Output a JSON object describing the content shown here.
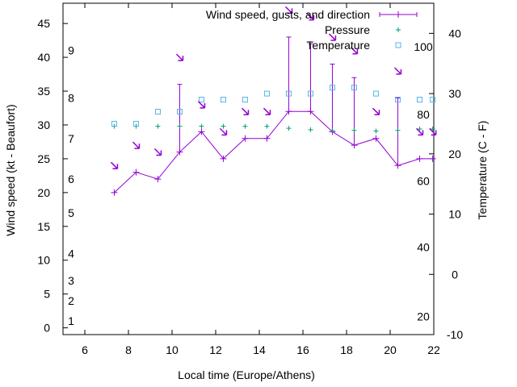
{
  "chart_data": {
    "type": "line",
    "xlabel": "Local time (Europe/Athens)",
    "ylabel": "Wind speed (kt - Beaufort)",
    "y2label": "Temperature (C - F)",
    "xlim": [
      5,
      22
    ],
    "ylim": [
      -1,
      48
    ],
    "y2lim": [
      -10,
      45
    ],
    "xticks": [
      6,
      8,
      10,
      12,
      14,
      16,
      18,
      20,
      22
    ],
    "yticks": [
      0,
      5,
      10,
      15,
      20,
      25,
      30,
      35,
      40,
      45
    ],
    "y2ticks": [
      -10,
      0,
      10,
      20,
      30,
      40
    ],
    "beaufort_labels": [
      {
        "text": "1",
        "y": 1
      },
      {
        "text": "2",
        "y": 4
      },
      {
        "text": "3",
        "y": 7
      },
      {
        "text": "4",
        "y": 11
      },
      {
        "text": "5",
        "y": 17
      },
      {
        "text": "6",
        "y": 22
      },
      {
        "text": "7",
        "y": 28
      },
      {
        "text": "8",
        "y": 34
      },
      {
        "text": "9",
        "y": 41
      }
    ],
    "fahrenheit_labels": [
      {
        "text": "20",
        "y2": -7
      },
      {
        "text": "40",
        "y2": 4.5
      },
      {
        "text": "60",
        "y2": 15.5
      },
      {
        "text": "80",
        "y2": 26.5
      },
      {
        "text": "100",
        "y2": 37.8
      }
    ],
    "legend_position": "top-right",
    "grid": false,
    "series": [
      {
        "name": "Wind speed, gusts, and direction",
        "type": "errorbar-line",
        "color": "#9400d3",
        "x": [
          7.35,
          8.35,
          9.35,
          10.35,
          11.35,
          12.35,
          13.35,
          14.35,
          15.35,
          16.35,
          17.35,
          18.35,
          19.35,
          20.35,
          21.35,
          21.95
        ],
        "y": [
          20,
          23,
          22,
          26,
          29,
          25,
          28,
          28,
          32,
          32,
          29,
          27,
          28,
          24,
          25,
          25
        ],
        "gusts": [
          null,
          null,
          null,
          36,
          null,
          null,
          null,
          null,
          43,
          42,
          39,
          37,
          null,
          34,
          null,
          null
        ]
      },
      {
        "name": "Pressure",
        "type": "points",
        "marker": "+",
        "color": "#009e73",
        "x": [
          7.35,
          8.35,
          9.35,
          10.35,
          11.35,
          12.35,
          13.35,
          14.35,
          15.35,
          16.35,
          17.35,
          18.35,
          19.35,
          20.35,
          21.35,
          21.95
        ],
        "y": [
          29.8,
          29.8,
          29.8,
          29.8,
          29.8,
          29.8,
          29.8,
          29.8,
          29.5,
          29.3,
          29.2,
          29.2,
          29.1,
          29.2,
          29.4,
          29.4
        ]
      },
      {
        "name": "Temperature",
        "type": "points",
        "marker": "square",
        "color": "#56b4e9",
        "axis": "y2",
        "x": [
          7.35,
          8.35,
          9.35,
          10.35,
          11.35,
          12.35,
          13.35,
          14.35,
          15.35,
          16.35,
          17.35,
          18.35,
          19.35,
          20.35,
          21.35,
          21.95
        ],
        "y": [
          25,
          25,
          27,
          27,
          29,
          29,
          29,
          30,
          30,
          30,
          31,
          31,
          30,
          29,
          29,
          29
        ]
      }
    ],
    "wind_direction_arrows": {
      "color": "#9400d3",
      "x": [
        7.35,
        8.35,
        9.35,
        10.35,
        11.35,
        12.35,
        13.35,
        14.35,
        15.35,
        16.35,
        17.35,
        18.35,
        19.35,
        20.35,
        21.35,
        21.95
      ],
      "y": [
        24,
        27,
        26,
        40,
        33,
        29,
        32,
        32,
        47,
        46,
        43,
        41,
        32,
        38,
        29,
        29
      ]
    }
  }
}
